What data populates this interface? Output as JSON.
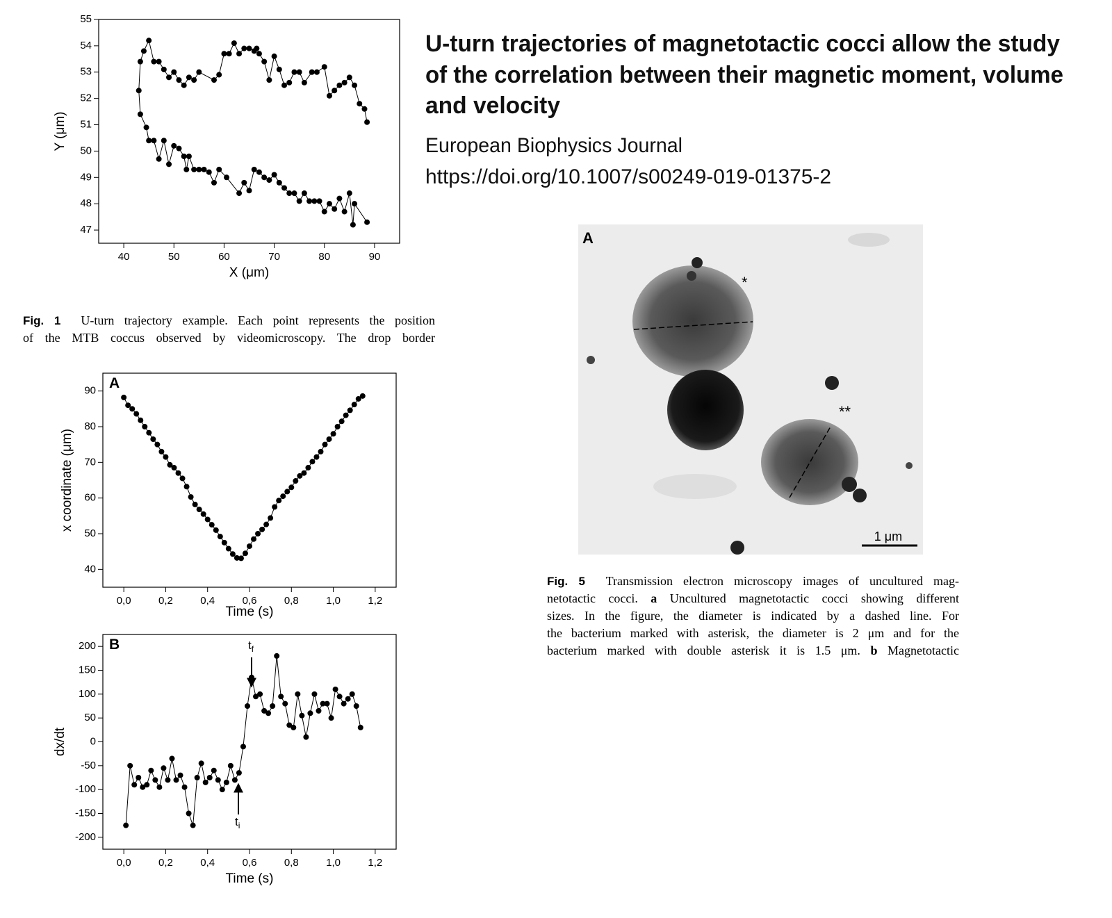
{
  "header": {
    "title_lines": [
      "U-turn trajectories of magnetotactic cocci allow the study",
      "of the correlation between their magnetic moment, volume",
      "and velocity"
    ],
    "journal": "European Biophysics Journal",
    "doi": "https://doi.org/10.1007/s00249-019-01375-2"
  },
  "fig1_caption": {
    "label": "Fig. 1",
    "lines": [
      "U-turn trajectory example. Each point represents the position",
      "of the MTB coccus observed by videomicroscopy. The drop border"
    ]
  },
  "figure5": {
    "panel": "A",
    "marker1": "*",
    "marker2": "**",
    "scale": "1 μm"
  },
  "fig5_caption": {
    "label": "Fig. 5",
    "lines": [
      [
        "Transmission electron microscopy images of uncultured mag-"
      ],
      [
        "netotactic cocci. ",
        "a",
        " Uncultured magnetotactic cocci showing different"
      ],
      [
        "sizes. In the figure, the diameter is indicated by a dashed line. For"
      ],
      [
        "the bacterium marked with asterisk, the diameter is 2 μm and for the"
      ],
      [
        "bacterium marked with double asterisk it is 1.5 μm. ",
        "b",
        " Magnetotactic"
      ]
    ]
  },
  "chart_data": [
    {
      "type": "line",
      "xlabel": "X (μm)",
      "ylabel": "Y (μm)",
      "color": "#000000",
      "xlim": [
        35,
        95
      ],
      "ylim": [
        46.5,
        55
      ],
      "xticks": [
        40,
        50,
        60,
        70,
        80,
        90
      ],
      "yticks": [
        47,
        48,
        49,
        50,
        51,
        52,
        53,
        54,
        55
      ],
      "x": [
        88.5,
        88,
        87,
        86,
        85,
        84,
        83,
        82,
        81,
        80,
        78.5,
        77.5,
        76,
        75,
        74,
        73,
        72,
        71,
        70,
        69,
        68,
        67,
        66.5,
        66,
        65,
        64,
        63,
        62,
        61,
        60,
        59,
        58,
        55,
        54,
        53,
        52,
        51,
        50,
        49,
        48,
        47,
        46,
        45,
        44,
        43.3,
        43,
        43.3,
        44.5,
        45,
        46,
        47,
        48,
        49,
        50,
        51,
        52,
        52.5,
        53,
        54,
        55,
        56,
        57,
        58,
        59,
        60.5,
        63,
        64,
        65,
        66,
        67,
        68,
        69,
        70,
        71,
        72,
        73,
        74,
        75,
        76,
        77,
        78,
        79,
        80,
        81,
        82,
        83,
        84,
        85,
        85.7,
        86,
        88.5
      ],
      "values": [
        51.1,
        51.6,
        51.8,
        52.5,
        52.8,
        52.6,
        52.5,
        52.3,
        52.1,
        53.2,
        53,
        53,
        52.6,
        53,
        53,
        52.6,
        52.5,
        53.1,
        53.6,
        52.7,
        53.4,
        53.7,
        53.9,
        53.8,
        53.9,
        53.9,
        53.7,
        54.1,
        53.7,
        53.7,
        52.9,
        52.7,
        53,
        52.7,
        52.8,
        52.5,
        52.7,
        53,
        52.8,
        53.1,
        53.4,
        53.4,
        54.2,
        53.8,
        53.4,
        52.3,
        51.4,
        50.9,
        50.4,
        50.4,
        49.7,
        50.4,
        49.5,
        50.2,
        50.1,
        49.8,
        49.3,
        49.8,
        49.3,
        49.3,
        49.3,
        49.2,
        48.8,
        49.3,
        49,
        48.4,
        48.8,
        48.5,
        49.3,
        49.2,
        49,
        48.9,
        49.1,
        48.8,
        48.6,
        48.4,
        48.4,
        48.1,
        48.4,
        48.1,
        48.1,
        48.1,
        47.7,
        48,
        47.8,
        48.2,
        47.7,
        48.4,
        47.2,
        48,
        47.3
      ]
    },
    {
      "type": "line",
      "label": "A",
      "xlabel": "Time (s)",
      "ylabel": "x coordinate (μm)",
      "color": "#000000",
      "xlim": [
        -0.1,
        1.3
      ],
      "ylim": [
        35,
        95
      ],
      "xticks": [
        {
          "value": 0,
          "label": "0,0"
        },
        {
          "value": 0.2,
          "label": "0,2"
        },
        {
          "value": 0.4,
          "label": "0,4"
        },
        {
          "value": 0.6,
          "label": "0,6"
        },
        {
          "value": 0.8,
          "label": "0,8"
        },
        {
          "value": 1.0,
          "label": "1,0"
        },
        {
          "value": 1.2,
          "label": "1,2"
        }
      ],
      "yticks": [
        40,
        50,
        60,
        70,
        80,
        90
      ],
      "x": [
        0,
        0.02,
        0.04,
        0.06,
        0.08,
        0.1,
        0.12,
        0.14,
        0.16,
        0.18,
        0.2,
        0.22,
        0.24,
        0.26,
        0.28,
        0.3,
        0.32,
        0.34,
        0.36,
        0.38,
        0.4,
        0.42,
        0.44,
        0.46,
        0.48,
        0.5,
        0.52,
        0.54,
        0.56,
        0.58,
        0.6,
        0.62,
        0.64,
        0.66,
        0.68,
        0.7,
        0.72,
        0.74,
        0.76,
        0.78,
        0.8,
        0.82,
        0.84,
        0.86,
        0.88,
        0.9,
        0.92,
        0.94,
        0.96,
        0.98,
        1.0,
        1.02,
        1.04,
        1.06,
        1.08,
        1.1,
        1.12,
        1.14
      ],
      "values": [
        88.2,
        86,
        85,
        83.6,
        81.8,
        80,
        78.3,
        76.5,
        75,
        73,
        71.5,
        69.3,
        68.5,
        67,
        65.5,
        63.2,
        60.3,
        58.2,
        56.8,
        55.5,
        54,
        52.5,
        51,
        49.2,
        47.5,
        45.8,
        44.3,
        43.2,
        43.1,
        44.5,
        46.5,
        48.5,
        50,
        51.2,
        52.6,
        54.4,
        57.5,
        59.3,
        60.5,
        61.8,
        63,
        64.8,
        66.2,
        67,
        68.5,
        70.2,
        71.5,
        73,
        75,
        76.5,
        78,
        80,
        81.5,
        83.2,
        84.6,
        86.2,
        87.8,
        88.6
      ]
    },
    {
      "type": "line",
      "label": "B",
      "xlabel": "Time (s)",
      "ylabel": "dx/dt",
      "color": "#000000",
      "xlim": [
        -0.1,
        1.3
      ],
      "ylim": [
        -225,
        225
      ],
      "xticks": [
        {
          "value": 0,
          "label": "0,0"
        },
        {
          "value": 0.2,
          "label": "0,2"
        },
        {
          "value": 0.4,
          "label": "0,4"
        },
        {
          "value": 0.6,
          "label": "0,6"
        },
        {
          "value": 0.8,
          "label": "0,8"
        },
        {
          "value": 1.0,
          "label": "1,0"
        },
        {
          "value": 1.2,
          "label": "1,2"
        }
      ],
      "yticks": [
        -200,
        -150,
        -100,
        -50,
        0,
        50,
        100,
        150,
        200
      ],
      "annotations": [
        {
          "text": "t",
          "sub": "f"
        },
        {
          "text": "t",
          "sub": "i"
        }
      ],
      "x": [
        0.01,
        0.03,
        0.05,
        0.07,
        0.09,
        0.11,
        0.13,
        0.15,
        0.17,
        0.19,
        0.21,
        0.23,
        0.25,
        0.27,
        0.29,
        0.31,
        0.33,
        0.35,
        0.37,
        0.39,
        0.41,
        0.43,
        0.45,
        0.47,
        0.49,
        0.51,
        0.53,
        0.55,
        0.57,
        0.59,
        0.61,
        0.63,
        0.65,
        0.67,
        0.69,
        0.71,
        0.73,
        0.75,
        0.77,
        0.79,
        0.81,
        0.83,
        0.85,
        0.87,
        0.89,
        0.91,
        0.93,
        0.95,
        0.97,
        0.99,
        1.01,
        1.03,
        1.05,
        1.07,
        1.09,
        1.11,
        1.13
      ],
      "values": [
        -175,
        -50,
        -90,
        -75,
        -95,
        -90,
        -60,
        -80,
        -95,
        -55,
        -80,
        -35,
        -80,
        -70,
        -95,
        -150,
        -175,
        -75,
        -45,
        -85,
        -75,
        -60,
        -80,
        -100,
        -85,
        -50,
        -80,
        -65,
        -10,
        75,
        135,
        95,
        100,
        65,
        60,
        75,
        180,
        95,
        80,
        35,
        30,
        100,
        55,
        10,
        60,
        100,
        65,
        80,
        80,
        50,
        110,
        95,
        80,
        90,
        100,
        75,
        30
      ]
    }
  ]
}
